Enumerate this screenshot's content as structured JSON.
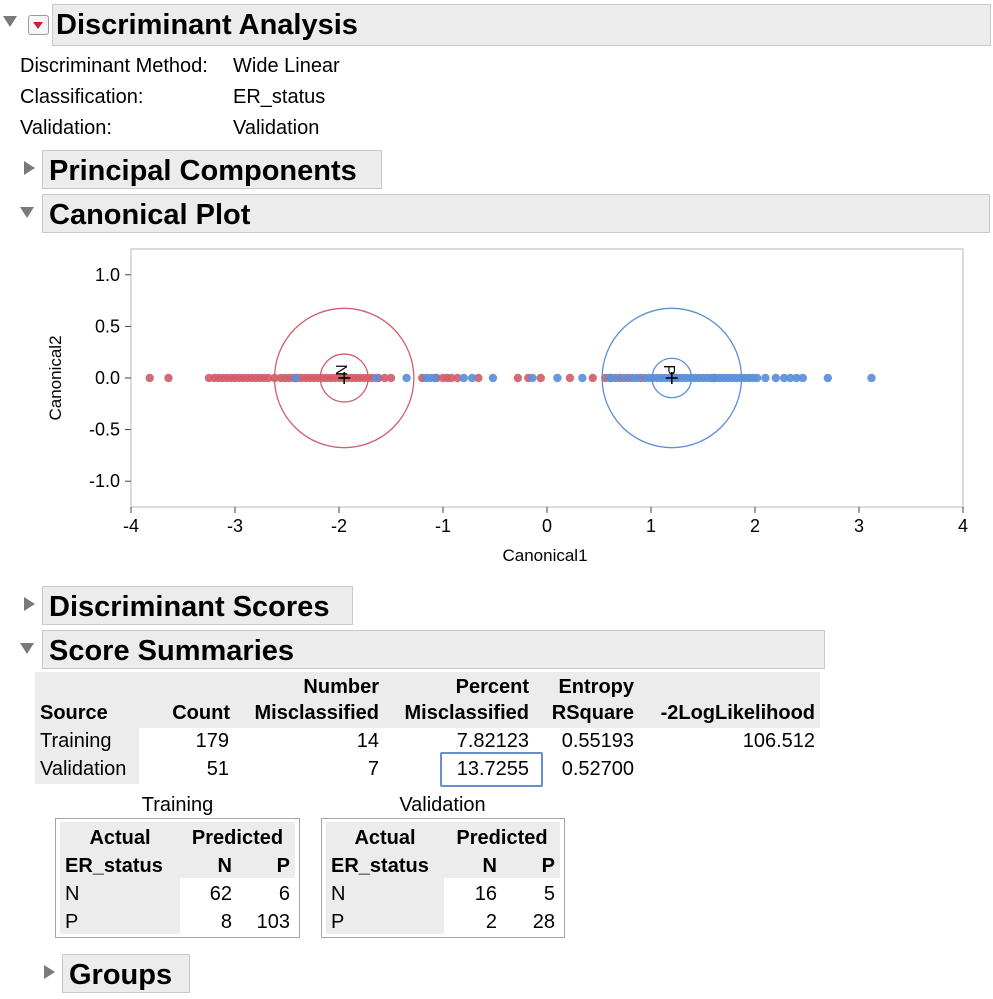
{
  "report": {
    "title": "Discriminant Analysis",
    "info": [
      {
        "label": "Discriminant Method:",
        "value": "Wide Linear"
      },
      {
        "label": "Classification:",
        "value": "ER_status"
      },
      {
        "label": "Validation:",
        "value": "Validation"
      }
    ]
  },
  "sections": {
    "principal_components": "Principal Components",
    "canonical_plot": "Canonical Plot",
    "discriminant_scores": "Discriminant Scores",
    "score_summaries": "Score Summaries",
    "groups": "Groups"
  },
  "chart_data": {
    "type": "scatter",
    "xlabel": "Canonical1",
    "ylabel": "Canonical2",
    "xlim": [
      -4,
      4
    ],
    "ylim": [
      -1.25,
      1.25
    ],
    "x_ticks": [
      -4,
      -3,
      -2,
      -1,
      0,
      1,
      2,
      3,
      4
    ],
    "y_ticks": [
      -1.0,
      -0.5,
      0.0,
      0.5,
      1.0
    ],
    "y_tick_labels": [
      "-1.0",
      "-0.5",
      "0.0",
      "0.5",
      "1.0"
    ],
    "grid": false,
    "colors": {
      "N": "#d0606a",
      "P": "#5b8fd9"
    },
    "centroids": [
      {
        "group": "N",
        "label": "N",
        "x": -1.95,
        "y": 0.0,
        "r_inner": 0.23,
        "r_outer": 0.67
      },
      {
        "group": "P",
        "label": "P",
        "x": 1.2,
        "y": 0.0,
        "r_inner": 0.19,
        "r_outer": 0.67
      }
    ],
    "series": [
      {
        "group": "N",
        "values": [
          [
            -3.82,
            0
          ],
          [
            -3.64,
            0
          ],
          [
            -3.25,
            0
          ],
          [
            -3.2,
            0
          ],
          [
            -3.16,
            0
          ],
          [
            -3.12,
            0
          ],
          [
            -3.08,
            0
          ],
          [
            -3.04,
            0
          ],
          [
            -3.0,
            0
          ],
          [
            -2.96,
            0
          ],
          [
            -2.92,
            0
          ],
          [
            -2.88,
            0
          ],
          [
            -2.84,
            0
          ],
          [
            -2.8,
            0
          ],
          [
            -2.76,
            0
          ],
          [
            -2.72,
            0
          ],
          [
            -2.68,
            0
          ],
          [
            -2.62,
            0
          ],
          [
            -2.56,
            0
          ],
          [
            -2.52,
            0
          ],
          [
            -2.48,
            0
          ],
          [
            -2.44,
            0
          ],
          [
            -2.4,
            0
          ],
          [
            -2.36,
            0
          ],
          [
            -2.32,
            0
          ],
          [
            -2.28,
            0
          ],
          [
            -2.24,
            0
          ],
          [
            -2.2,
            0
          ],
          [
            -2.16,
            0
          ],
          [
            -2.12,
            0
          ],
          [
            -2.08,
            0
          ],
          [
            -2.04,
            0
          ],
          [
            -2.0,
            0
          ],
          [
            -1.96,
            0
          ],
          [
            -1.92,
            0
          ],
          [
            -1.88,
            0
          ],
          [
            -1.84,
            0
          ],
          [
            -1.8,
            0
          ],
          [
            -1.76,
            0
          ],
          [
            -1.72,
            0
          ],
          [
            -1.68,
            0
          ],
          [
            -1.62,
            0
          ],
          [
            -1.56,
            0
          ],
          [
            -1.5,
            0
          ],
          [
            -1.2,
            0
          ],
          [
            -1.06,
            0
          ],
          [
            -1.0,
            0
          ],
          [
            -0.96,
            0
          ],
          [
            -0.92,
            0
          ],
          [
            -0.86,
            0
          ],
          [
            -0.66,
            0
          ],
          [
            -0.28,
            0
          ],
          [
            -0.18,
            0
          ],
          [
            -0.06,
            0
          ],
          [
            0.22,
            0
          ],
          [
            0.44,
            0
          ],
          [
            0.56,
            0
          ],
          [
            0.62,
            0
          ],
          [
            0.7,
            0
          ],
          [
            0.78,
            0
          ],
          [
            0.9,
            0
          ],
          [
            1.24,
            0
          ],
          [
            1.6,
            0
          ]
        ]
      },
      {
        "group": "P",
        "values": [
          [
            -2.42,
            0
          ],
          [
            -1.64,
            0
          ],
          [
            -1.35,
            0
          ],
          [
            -1.16,
            0
          ],
          [
            -1.12,
            0
          ],
          [
            -1.08,
            0
          ],
          [
            -0.8,
            0
          ],
          [
            -0.72,
            0
          ],
          [
            -0.52,
            0
          ],
          [
            -0.14,
            0
          ],
          [
            0.1,
            0
          ],
          [
            0.34,
            0
          ],
          [
            0.6,
            0
          ],
          [
            0.66,
            0
          ],
          [
            0.74,
            0
          ],
          [
            0.82,
            0
          ],
          [
            0.86,
            0
          ],
          [
            0.94,
            0
          ],
          [
            0.98,
            0
          ],
          [
            1.02,
            0
          ],
          [
            1.06,
            0
          ],
          [
            1.1,
            0
          ],
          [
            1.14,
            0
          ],
          [
            1.18,
            0
          ],
          [
            1.22,
            0
          ],
          [
            1.26,
            0
          ],
          [
            1.3,
            0
          ],
          [
            1.34,
            0
          ],
          [
            1.38,
            0
          ],
          [
            1.42,
            0
          ],
          [
            1.46,
            0
          ],
          [
            1.5,
            0
          ],
          [
            1.54,
            0
          ],
          [
            1.58,
            0
          ],
          [
            1.62,
            0
          ],
          [
            1.66,
            0
          ],
          [
            1.7,
            0
          ],
          [
            1.74,
            0
          ],
          [
            1.78,
            0
          ],
          [
            1.82,
            0
          ],
          [
            1.86,
            0
          ],
          [
            1.9,
            0
          ],
          [
            1.94,
            0
          ],
          [
            1.98,
            0
          ],
          [
            2.02,
            0
          ],
          [
            2.1,
            0
          ],
          [
            2.2,
            0
          ],
          [
            2.28,
            0
          ],
          [
            2.34,
            0
          ],
          [
            2.4,
            0
          ],
          [
            2.46,
            0
          ],
          [
            2.7,
            0
          ],
          [
            3.12,
            0
          ]
        ]
      }
    ]
  },
  "score_summary": {
    "headers": {
      "source": "Source",
      "count": "Count",
      "number_top": "Number",
      "number_bottom": "Misclassified",
      "percent_top": "Percent",
      "percent_bottom": "Misclassified",
      "entropy_top": "Entropy",
      "entropy_bottom": "RSquare",
      "loglik": "-2LogLikelihood"
    },
    "rows": [
      {
        "source": "Training",
        "count": "179",
        "number": "14",
        "percent": "7.82123",
        "entropy": "0.55193",
        "loglik": "106.512"
      },
      {
        "source": "Validation",
        "count": "51",
        "number": "7",
        "percent": "13.7255",
        "entropy": "0.52700",
        "loglik": ""
      }
    ]
  },
  "confusion": [
    {
      "title": "Training",
      "actual": "Actual",
      "predicted": "Predicted",
      "var": "ER_status",
      "cols": [
        "N",
        "P"
      ],
      "rows": [
        {
          "label": "N",
          "values": [
            "62",
            "6"
          ]
        },
        {
          "label": "P",
          "values": [
            "8",
            "103"
          ]
        }
      ]
    },
    {
      "title": "Validation",
      "actual": "Actual",
      "predicted": "Predicted",
      "var": "ER_status",
      "cols": [
        "N",
        "P"
      ],
      "rows": [
        {
          "label": "N",
          "values": [
            "16",
            "5"
          ]
        },
        {
          "label": "P",
          "values": [
            "2",
            "28"
          ]
        }
      ]
    }
  ]
}
